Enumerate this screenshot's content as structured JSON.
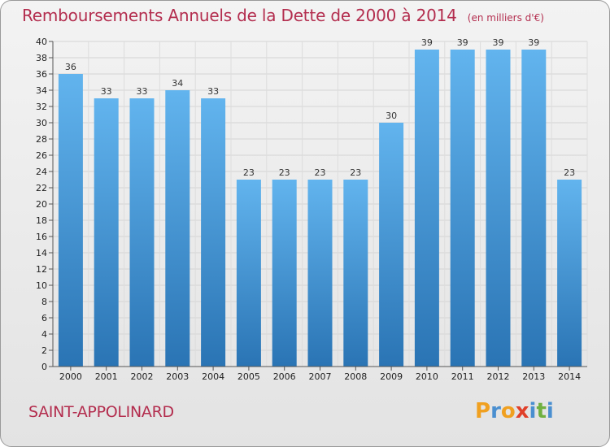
{
  "title": "Remboursements Annuels de la Dette de 2000 à 2014",
  "subtitle": "(en milliers d'€)",
  "city": "SAINT-APPOLINARD",
  "logo": {
    "letters": [
      "P",
      "r",
      "o",
      "x",
      "i",
      "t",
      "i"
    ],
    "colors": [
      "#f0a020",
      "#4a8fd0",
      "#f0a020",
      "#e0402a",
      "#4a8fd0",
      "#70b040",
      "#4a8fd0"
    ]
  },
  "colors": {
    "bar_top": "#62b4ee",
    "bar_bottom": "#2a74b4",
    "title": "#b32d4e"
  },
  "chart_data": {
    "type": "bar",
    "categories": [
      "2000",
      "2001",
      "2002",
      "2003",
      "2004",
      "2005",
      "2006",
      "2007",
      "2008",
      "2009",
      "2010",
      "2011",
      "2012",
      "2013",
      "2014"
    ],
    "values": [
      36,
      33,
      33,
      34,
      33,
      23,
      23,
      23,
      23,
      30,
      39,
      39,
      39,
      39,
      23
    ],
    "ylim": [
      0,
      40
    ],
    "yticks": [
      0,
      2,
      4,
      6,
      8,
      10,
      12,
      14,
      16,
      18,
      20,
      22,
      24,
      26,
      28,
      30,
      32,
      34,
      36,
      38,
      40
    ],
    "grid": true
  }
}
